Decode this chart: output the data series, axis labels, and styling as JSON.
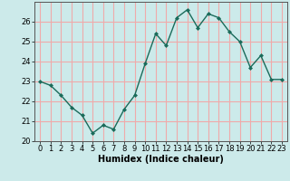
{
  "x": [
    0,
    1,
    2,
    3,
    4,
    5,
    6,
    7,
    8,
    9,
    10,
    11,
    12,
    13,
    14,
    15,
    16,
    17,
    18,
    19,
    20,
    21,
    22,
    23
  ],
  "y": [
    23.0,
    22.8,
    22.3,
    21.7,
    21.3,
    20.4,
    20.8,
    20.6,
    21.6,
    22.3,
    23.9,
    25.4,
    24.8,
    26.2,
    26.6,
    25.7,
    26.4,
    26.2,
    25.5,
    25.0,
    23.7,
    24.3,
    23.1,
    23.1
  ],
  "xlabel": "Humidex (Indice chaleur)",
  "ylabel": "",
  "xlim": [
    -0.5,
    23.5
  ],
  "ylim": [
    20,
    27
  ],
  "yticks": [
    20,
    21,
    22,
    23,
    24,
    25,
    26
  ],
  "xticks": [
    0,
    1,
    2,
    3,
    4,
    5,
    6,
    7,
    8,
    9,
    10,
    11,
    12,
    13,
    14,
    15,
    16,
    17,
    18,
    19,
    20,
    21,
    22,
    23
  ],
  "line_color": "#1a6b5a",
  "marker": "D",
  "marker_size": 2.0,
  "bg_color": "#cceaea",
  "grid_color": "#f0aaaa",
  "label_fontsize": 7,
  "tick_fontsize": 6,
  "line_width": 1.0
}
